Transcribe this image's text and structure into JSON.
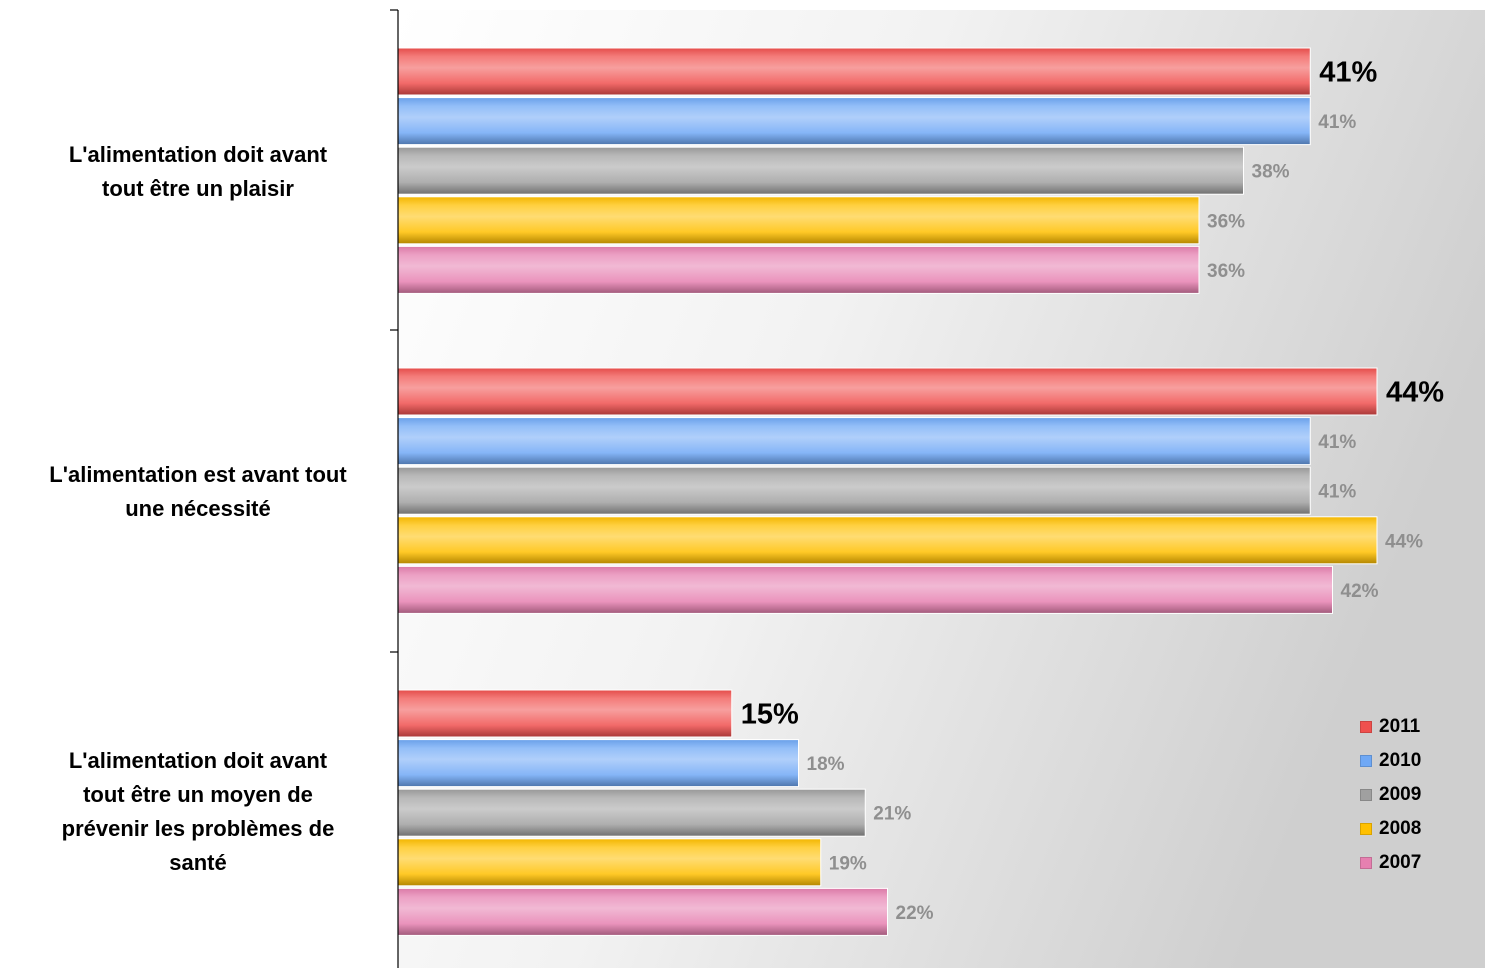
{
  "chart_data": {
    "type": "bar",
    "orientation": "horizontal",
    "categories": [
      "L'alimentation doit avant\ntout être un plaisir",
      "L'alimentation est avant tout\nune nécessité",
      "L'alimentation doit avant\ntout être un moyen de\nprévenir les problèmes de\nsanté"
    ],
    "series": [
      {
        "name": "2011",
        "color": "#f0504e",
        "values": [
          41,
          44,
          15
        ],
        "labels": [
          "41%",
          "44%",
          "15%"
        ]
      },
      {
        "name": "2010",
        "color": "#6fa8f5",
        "values": [
          41,
          41,
          18
        ],
        "labels": [
          "41%",
          "41%",
          "18%"
        ]
      },
      {
        "name": "2009",
        "color": "#a0a0a0",
        "values": [
          38,
          41,
          21
        ],
        "labels": [
          "38%",
          "41%",
          "21%"
        ]
      },
      {
        "name": "2008",
        "color": "#ffc000",
        "values": [
          36,
          44,
          19
        ],
        "labels": [
          "36%",
          "44%",
          "19%"
        ]
      },
      {
        "name": "2007",
        "color": "#e680b0",
        "values": [
          36,
          42,
          22
        ],
        "labels": [
          "36%",
          "42%",
          "22%"
        ]
      }
    ],
    "xlim": [
      0,
      45
    ],
    "legend_position": "bottom-right",
    "grid": false,
    "highlight_series": "2011"
  }
}
